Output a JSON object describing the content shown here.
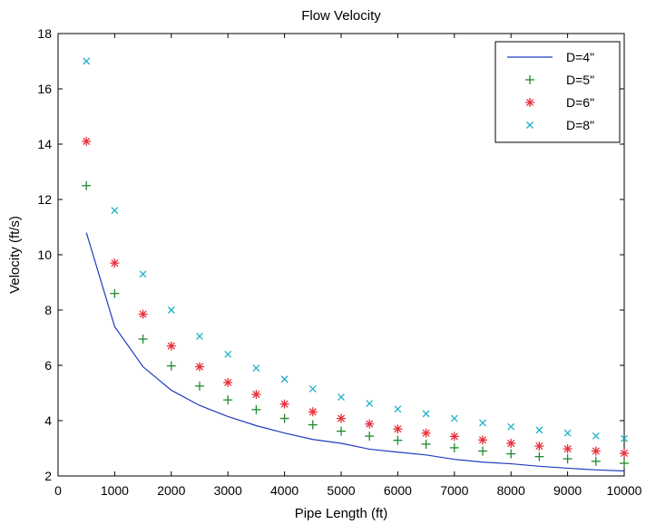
{
  "chart_data": {
    "type": "line",
    "title": "Flow Velocity",
    "xlabel": "Pipe Length (ft)",
    "ylabel": "Velocity (ft/s)",
    "xlim": [
      0,
      10000
    ],
    "ylim": [
      2,
      18
    ],
    "xticks": [
      0,
      1000,
      2000,
      3000,
      4000,
      5000,
      6000,
      7000,
      8000,
      9000,
      10000
    ],
    "yticks": [
      2,
      4,
      6,
      8,
      10,
      12,
      14,
      16,
      18
    ],
    "grid": false,
    "legend_position": "top-right",
    "x": [
      500,
      1000,
      1500,
      2000,
      2500,
      3000,
      3500,
      4000,
      4500,
      5000,
      5500,
      6000,
      6500,
      7000,
      7500,
      8000,
      8500,
      9000,
      9500,
      10000
    ],
    "series": [
      {
        "name": "D=4\"",
        "style": "line",
        "color": "#1f3cbf",
        "values": [
          10.8,
          7.4,
          5.95,
          5.1,
          4.55,
          4.15,
          3.82,
          3.55,
          3.32,
          3.18,
          2.97,
          2.86,
          2.76,
          2.6,
          2.5,
          2.44,
          2.35,
          2.28,
          2.22,
          2.18
        ]
      },
      {
        "name": "D=5\"",
        "style": "plus",
        "color": "#1e8a2e",
        "values": [
          12.5,
          8.6,
          6.95,
          5.98,
          5.25,
          4.75,
          4.4,
          4.08,
          3.85,
          3.62,
          3.44,
          3.29,
          3.15,
          3.02,
          2.9,
          2.8,
          2.7,
          2.62,
          2.53,
          2.46
        ]
      },
      {
        "name": "D=6\"",
        "style": "star",
        "color": "#e8303a",
        "values": [
          14.1,
          9.7,
          7.85,
          6.7,
          5.95,
          5.38,
          4.95,
          4.6,
          4.32,
          4.08,
          3.88,
          3.7,
          3.55,
          3.43,
          3.3,
          3.18,
          3.08,
          2.98,
          2.9,
          2.82
        ]
      },
      {
        "name": "D=8\"",
        "style": "x",
        "color": "#1fb0c8",
        "values": [
          17.0,
          11.6,
          9.3,
          8.0,
          7.05,
          6.4,
          5.9,
          5.5,
          5.15,
          4.85,
          4.62,
          4.42,
          4.25,
          4.08,
          3.92,
          3.78,
          3.66,
          3.55,
          3.45,
          3.35
        ]
      }
    ]
  }
}
